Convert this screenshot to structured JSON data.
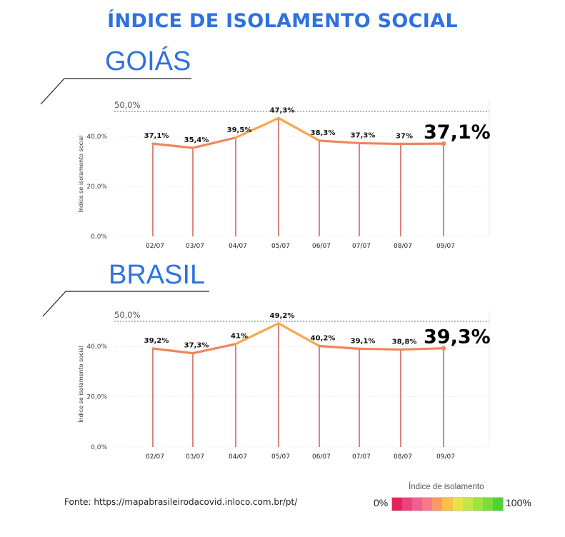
{
  "page": {
    "title": "ÍNDICE DE ISOLAMENTO SOCIAL"
  },
  "source": "Fonte: https://mapabrasileirodacovid.inloco.com.br/pt/",
  "legend": {
    "title": "Índice de isolamento",
    "min_label": "0%",
    "max_label": "100%",
    "colors": [
      "#e0245e",
      "#e8437a",
      "#ee5f94",
      "#f47a8a",
      "#f89a6a",
      "#fbbf4c",
      "#e7e24a",
      "#c4e64a",
      "#9de442",
      "#76dd3a",
      "#4fd42f"
    ]
  },
  "chart_data": [
    {
      "type": "line",
      "title": "GOIÁS",
      "ylabel": "Índice se isolamento social",
      "xlabel": "",
      "categories": [
        "02/07",
        "03/07",
        "04/07",
        "05/07",
        "06/07",
        "07/07",
        "08/07",
        "09/07"
      ],
      "values": [
        37.1,
        35.4,
        39.5,
        47.3,
        38.3,
        37.3,
        37.0,
        37.1
      ],
      "value_labels": [
        "37,1%",
        "35,4%",
        "39,5%",
        "47,3%",
        "38,3%",
        "37,3%",
        "37%",
        "37,1%"
      ],
      "yticks": [
        0,
        20,
        40
      ],
      "ytick_labels": [
        "0,0%",
        "20,0%",
        "40,0%"
      ],
      "reference_line": {
        "value": 50,
        "label": "50,0%"
      },
      "ylim": [
        0,
        50
      ],
      "grid": true
    },
    {
      "type": "line",
      "title": "BRASIL",
      "ylabel": "Índice se isolamento social",
      "xlabel": "",
      "categories": [
        "02/07",
        "03/07",
        "04/07",
        "05/07",
        "06/07",
        "07/07",
        "08/07",
        "09/07"
      ],
      "values": [
        39.2,
        37.3,
        41.0,
        49.2,
        40.2,
        39.1,
        38.8,
        39.3
      ],
      "value_labels": [
        "39,2%",
        "37,3%",
        "41%",
        "49,2%",
        "40,2%",
        "39,1%",
        "38,8%",
        "39,3%"
      ],
      "yticks": [
        0,
        20,
        40
      ],
      "ytick_labels": [
        "0,0%",
        "20,0%",
        "40,0%"
      ],
      "reference_line": {
        "value": 50,
        "label": "50,0%"
      },
      "ylim": [
        0,
        50
      ],
      "grid": true
    }
  ]
}
